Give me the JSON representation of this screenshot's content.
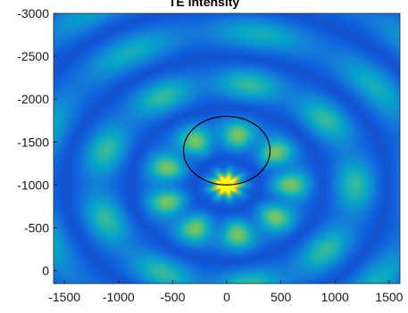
{
  "chart_data": {
    "type": "heatmap",
    "title": "TE intensity",
    "xlabel": "",
    "ylabel": "",
    "xlim": [
      -1600,
      1600
    ],
    "ylim": [
      -3000,
      150
    ],
    "y_reversed": true,
    "x_ticks": [
      -1500,
      -1000,
      -500,
      0,
      500,
      1000,
      1500
    ],
    "y_ticks": [
      -3000,
      -2500,
      -2000,
      -1500,
      -1000,
      -500,
      0
    ],
    "colormap": "parula",
    "peak": {
      "x": 0,
      "y": -1000
    },
    "circle": {
      "cx": 0,
      "cy": -1400,
      "rx": 400,
      "ry": 400,
      "color": "#000000"
    },
    "grid": false,
    "legend": "none"
  }
}
